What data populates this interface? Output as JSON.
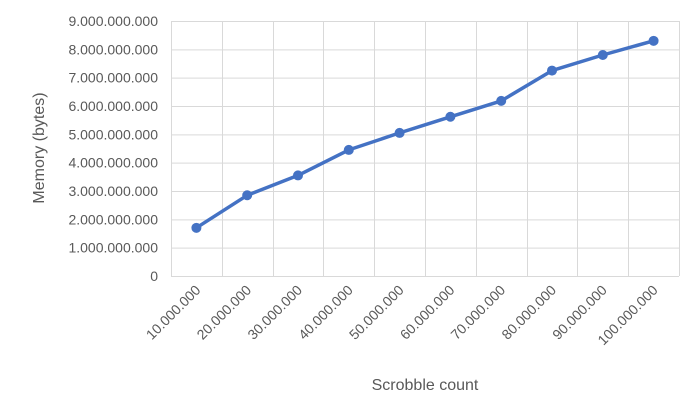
{
  "chart_data": {
    "type": "line",
    "title": "",
    "xlabel": "Scrobble count",
    "ylabel": "Memory (bytes)",
    "categories": [
      "10.000.000",
      "20.000.000",
      "30.000.000",
      "40.000.000",
      "50.000.000",
      "60.000.000",
      "70.000.000",
      "80.000.000",
      "90.000.000",
      "100.000.000"
    ],
    "series": [
      {
        "values": [
          1700000000,
          2850000000,
          3550000000,
          4450000000,
          5050000000,
          5620000000,
          6180000000,
          7250000000,
          7800000000,
          8300000000
        ],
        "color": "#4472C4"
      }
    ],
    "ylim": [
      0,
      9000000000
    ],
    "y_ticks": [
      0,
      1000000000,
      2000000000,
      3000000000,
      4000000000,
      5000000000,
      6000000000,
      7000000000,
      8000000000,
      9000000000
    ],
    "y_tick_labels": [
      "0",
      "1.000.000.000",
      "2.000.000.000",
      "3.000.000.000",
      "4.000.000.000",
      "5.000.000.000",
      "6.000.000.000",
      "7.000.000.000",
      "8.000.000.000",
      "9.000.000.000"
    ],
    "grid": true,
    "legend": "none"
  }
}
